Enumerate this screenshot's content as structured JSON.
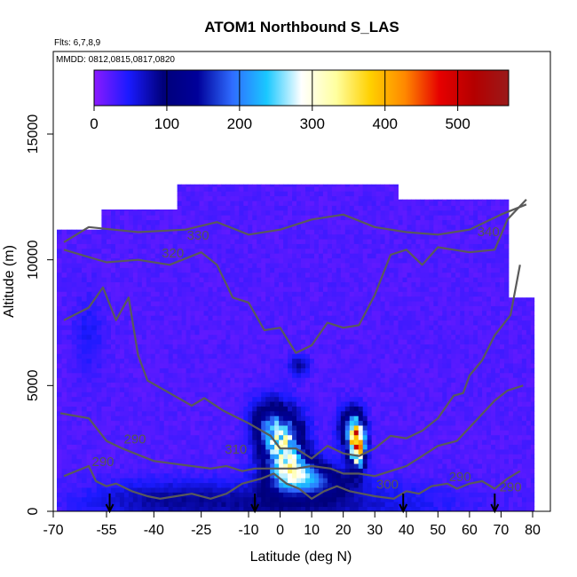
{
  "chart_data": {
    "type": "heatmap",
    "title": "ATOM1 Northbound S_LAS",
    "annotations": [
      "Flts: 6,7,8,9",
      "MMDD: 0812,0815,0817,0820"
    ],
    "xlabel": "Latitude (deg N)",
    "ylabel": "Altitude (m)",
    "xlim": [
      -70,
      82
    ],
    "ylim": [
      0,
      17500
    ],
    "x_ticks": [
      -70,
      -55,
      -40,
      -25,
      -10,
      0,
      10,
      20,
      30,
      40,
      50,
      60,
      70,
      80
    ],
    "x_tick_labels": [
      "-70",
      "-55",
      "-40",
      "-25",
      "-10",
      "0",
      "10",
      "20",
      "30",
      "40",
      "50",
      "60",
      "70",
      "80"
    ],
    "y_ticks": [
      0,
      5000,
      10000,
      15000
    ],
    "y_tick_labels": [
      "0",
      "5000",
      "10000",
      "15000"
    ],
    "colorbar": {
      "range": [
        0,
        570
      ],
      "ticks": [
        0,
        100,
        200,
        300,
        400,
        500
      ],
      "tick_labels": [
        "0",
        "100",
        "200",
        "300",
        "400",
        "500"
      ],
      "colors": [
        "#8b1aff",
        "#1a1aff",
        "#00007a",
        "#00009a",
        "#2f6cff",
        "#1ac8ff",
        "#ffffff",
        "#ffffa0",
        "#ffd000",
        "#ff8800",
        "#e60000",
        "#b40000",
        "#9a1a1a"
      ]
    },
    "contour_labels": [
      {
        "text": "330",
        "lat": -26,
        "alt": 10800
      },
      {
        "text": "320",
        "lat": -34,
        "alt": 10100
      },
      {
        "text": "340",
        "lat": 66,
        "alt": 10950
      },
      {
        "text": "310",
        "lat": -14,
        "alt": 2300
      },
      {
        "text": "300",
        "lat": 34,
        "alt": 900
      },
      {
        "text": "290",
        "lat": -56,
        "alt": 1800
      },
      {
        "text": "290",
        "lat": -46,
        "alt": 2700
      },
      {
        "text": "290",
        "lat": 57,
        "alt": 1200
      },
      {
        "text": "290",
        "lat": 73,
        "alt": 800
      }
    ],
    "flight_markers_lat": [
      -54,
      -8,
      39,
      68
    ],
    "hotspots": [
      {
        "lat": 1,
        "alt": 2600,
        "value": 330
      },
      {
        "lat": 24.5,
        "alt": 2700,
        "value": 520
      },
      {
        "lat": 5,
        "alt": 1600,
        "value": 220
      }
    ]
  }
}
